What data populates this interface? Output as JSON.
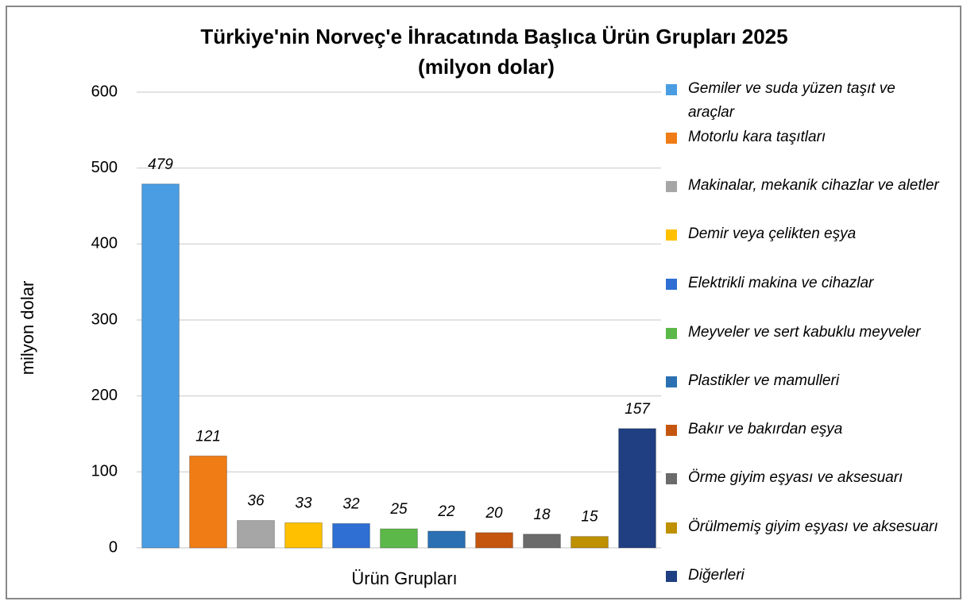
{
  "chart_data": {
    "type": "bar",
    "title": "Türkiye'nin Norveç'e İhracatında Başlıca Ürün Grupları 2025",
    "subtitle": "(milyon dolar)",
    "y_label": "milyon dolar",
    "x_label": "Ürün Grupları",
    "categories": [
      "Gemiler ve suda yüzen taşıt ve araçlar",
      "Motorlu kara taşıtları",
      "Makinalar, mekanik cihazlar ve aletler",
      "Demir veya çelikten eşya",
      "Elektrikli makina ve cihazlar",
      "Meyveler ve sert kabuklu meyveler",
      "Plastikler ve mamulleri",
      "Bakır ve bakırdan eşya",
      "Örme giyim eşyası ve aksesuarı",
      "Örülmemiş giyim eşyası ve aksesuarı",
      "Diğerleri"
    ],
    "values": [
      479,
      121,
      36,
      33,
      32,
      25,
      22,
      20,
      18,
      15,
      157
    ],
    "colors": [
      "#4a9de2",
      "#f07c16",
      "#a6a6a6",
      "#ffc000",
      "#2f6fd3",
      "#5cb848",
      "#2a70b2",
      "#c5560f",
      "#6b6b6b",
      "#bf9000",
      "#1f3f82"
    ],
    "ylim": [
      0,
      600
    ],
    "yticks": [
      0,
      100,
      200,
      300,
      400,
      500,
      600
    ],
    "grid": true,
    "legend": "right"
  }
}
